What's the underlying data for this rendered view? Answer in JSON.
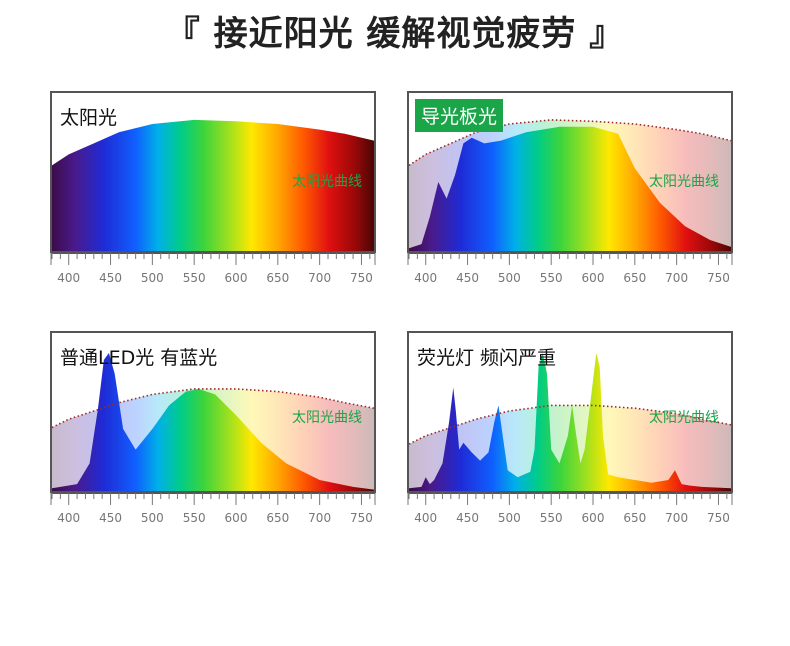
{
  "page_title": "『 接近阳光 缓解视觉疲劳 』",
  "colors": {
    "sun_label": "#1aa548",
    "badge_bg": "#1aa548",
    "sun_curve": "#9b2a2a"
  },
  "chart_data": [
    {
      "type": "area",
      "title": "太阳光",
      "highlighted": false,
      "reference_label": "太阳光曲线",
      "x_ticks": [
        400,
        450,
        500,
        550,
        600,
        650,
        700,
        750
      ],
      "xlim": [
        380,
        765
      ],
      "ylim": [
        0,
        1
      ],
      "series": [
        {
          "name": "太阳光",
          "x": [
            380,
            400,
            430,
            460,
            500,
            550,
            600,
            650,
            700,
            730,
            765
          ],
          "y": [
            0.62,
            0.7,
            0.78,
            0.86,
            0.92,
            0.95,
            0.94,
            0.92,
            0.88,
            0.85,
            0.8
          ]
        }
      ]
    },
    {
      "type": "area",
      "title": "导光板光",
      "highlighted": true,
      "reference_label": "太阳光曲线",
      "x_ticks": [
        400,
        450,
        500,
        550,
        600,
        650,
        700,
        750
      ],
      "xlim": [
        380,
        765
      ],
      "ylim": [
        0,
        1
      ],
      "reference": {
        "x": [
          380,
          400,
          430,
          460,
          500,
          550,
          600,
          650,
          700,
          730,
          765
        ],
        "y": [
          0.62,
          0.7,
          0.78,
          0.86,
          0.92,
          0.95,
          0.94,
          0.92,
          0.88,
          0.85,
          0.8
        ]
      },
      "series": [
        {
          "name": "导光板光",
          "x": [
            380,
            395,
            405,
            415,
            425,
            435,
            445,
            455,
            470,
            490,
            520,
            560,
            600,
            630,
            650,
            680,
            710,
            740,
            765
          ],
          "y": [
            0.02,
            0.05,
            0.25,
            0.5,
            0.38,
            0.55,
            0.78,
            0.82,
            0.78,
            0.8,
            0.86,
            0.9,
            0.9,
            0.85,
            0.6,
            0.35,
            0.18,
            0.08,
            0.03
          ]
        }
      ]
    },
    {
      "type": "area",
      "title": "普通LED光 有蓝光",
      "highlighted": false,
      "reference_label": "太阳光曲线",
      "x_ticks": [
        400,
        450,
        500,
        550,
        600,
        650,
        700,
        750
      ],
      "xlim": [
        380,
        765
      ],
      "ylim": [
        0,
        1
      ],
      "reference": {
        "x": [
          380,
          400,
          430,
          460,
          500,
          550,
          600,
          650,
          700,
          730,
          765
        ],
        "y": [
          0.46,
          0.52,
          0.58,
          0.64,
          0.7,
          0.74,
          0.74,
          0.72,
          0.68,
          0.64,
          0.6
        ]
      },
      "series": [
        {
          "name": "普通LED光",
          "x": [
            380,
            410,
            425,
            435,
            442,
            448,
            455,
            465,
            480,
            500,
            520,
            540,
            555,
            575,
            600,
            630,
            660,
            700,
            740,
            765
          ],
          "y": [
            0.02,
            0.05,
            0.2,
            0.6,
            0.95,
            1.0,
            0.85,
            0.45,
            0.3,
            0.45,
            0.62,
            0.72,
            0.74,
            0.7,
            0.55,
            0.35,
            0.2,
            0.08,
            0.03,
            0.01
          ]
        }
      ]
    },
    {
      "type": "area",
      "title": "荧光灯 频闪严重",
      "highlighted": false,
      "reference_label": "太阳光曲线",
      "x_ticks": [
        400,
        450,
        500,
        550,
        600,
        650,
        700,
        750
      ],
      "xlim": [
        380,
        765
      ],
      "ylim": [
        0,
        1
      ],
      "reference": {
        "x": [
          380,
          400,
          430,
          460,
          500,
          550,
          600,
          650,
          700,
          730,
          765
        ],
        "y": [
          0.34,
          0.4,
          0.46,
          0.52,
          0.58,
          0.62,
          0.62,
          0.6,
          0.56,
          0.52,
          0.48
        ]
      },
      "series": [
        {
          "name": "荧光灯",
          "x": [
            380,
            395,
            400,
            405,
            410,
            420,
            428,
            433,
            436,
            440,
            445,
            455,
            465,
            475,
            482,
            487,
            492,
            498,
            510,
            525,
            530,
            535,
            540,
            545,
            550,
            560,
            570,
            575,
            580,
            585,
            590,
            600,
            604,
            608,
            612,
            618,
            630,
            650,
            670,
            690,
            698,
            702,
            706,
            715,
            730,
            765
          ],
          "y": [
            0.02,
            0.03,
            0.1,
            0.05,
            0.08,
            0.2,
            0.5,
            0.75,
            0.58,
            0.3,
            0.35,
            0.28,
            0.22,
            0.28,
            0.5,
            0.62,
            0.4,
            0.15,
            0.1,
            0.14,
            0.3,
            0.9,
            1.0,
            0.85,
            0.3,
            0.2,
            0.4,
            0.62,
            0.4,
            0.2,
            0.3,
            0.8,
            1.0,
            0.9,
            0.4,
            0.12,
            0.1,
            0.08,
            0.06,
            0.08,
            0.15,
            0.1,
            0.05,
            0.04,
            0.03,
            0.02
          ]
        }
      ]
    }
  ]
}
